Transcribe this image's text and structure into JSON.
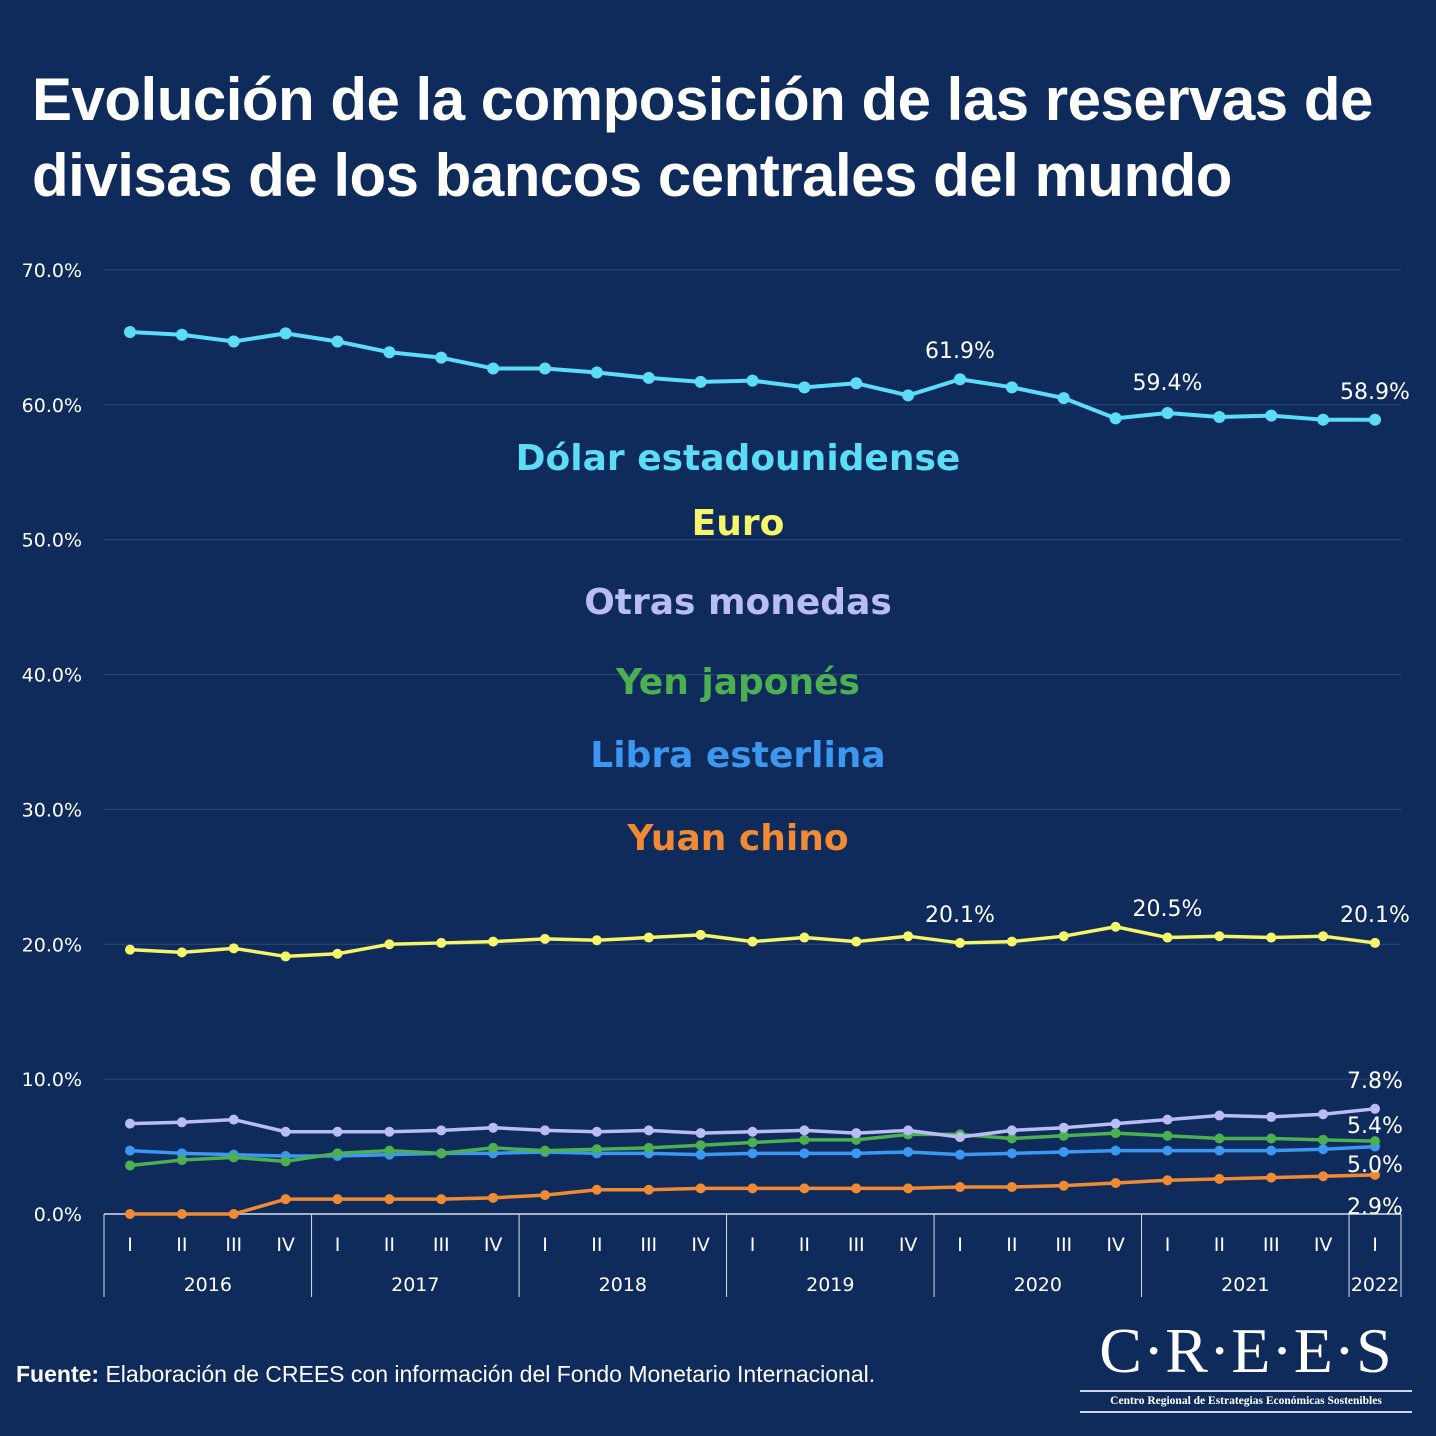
{
  "title": "Evolución de la composición de las reservas de divisas de los bancos centrales del mundo",
  "footer": {
    "label": "Fuente:",
    "text": " Elaboración de CREES con información del Fondo Monetario Internacional."
  },
  "logo": {
    "name": "C·R·E·E·S",
    "subtitle": "Centro Regional de Estrategias Económicas Sostenibles"
  },
  "colors": {
    "background": "#0f2b5b",
    "grid": "#2f4a78",
    "axis": "#d9dee8"
  },
  "chart_data": {
    "type": "line",
    "title": "Evolución de la composición de las reservas de divisas de los bancos centrales del mundo",
    "xlabel": "",
    "ylabel": "",
    "ylim": [
      0,
      70
    ],
    "yticks": [
      "0.0%",
      "10.0%",
      "20.0%",
      "30.0%",
      "40.0%",
      "50.0%",
      "60.0%",
      "70.0%"
    ],
    "grid": true,
    "legend_placement": "center",
    "quarters": [
      "I",
      "II",
      "III",
      "IV",
      "I",
      "II",
      "III",
      "IV",
      "I",
      "II",
      "III",
      "IV",
      "I",
      "II",
      "III",
      "IV",
      "I",
      "II",
      "III",
      "IV",
      "I",
      "II",
      "III",
      "IV",
      "I"
    ],
    "years": [
      {
        "label": "2016",
        "quarters": 4
      },
      {
        "label": "2017",
        "quarters": 4
      },
      {
        "label": "2018",
        "quarters": 4
      },
      {
        "label": "2019",
        "quarters": 4
      },
      {
        "label": "2020",
        "quarters": 4
      },
      {
        "label": "2021",
        "quarters": 4
      },
      {
        "label": "2022",
        "quarters": 1
      }
    ],
    "series": [
      {
        "name": "Dólar estadounidense",
        "color": "#5ddcf7",
        "values": [
          65.4,
          65.2,
          64.7,
          65.3,
          64.7,
          63.9,
          63.5,
          62.7,
          62.7,
          62.4,
          62.0,
          61.7,
          61.8,
          61.3,
          61.6,
          60.7,
          61.9,
          61.3,
          60.5,
          59.0,
          59.4,
          59.1,
          59.2,
          58.9,
          58.9
        ],
        "labels": [
          {
            "index": 16,
            "text": "61.9%"
          },
          {
            "index": 20,
            "text": "59.4%"
          },
          {
            "index": 24,
            "text": "58.9%"
          }
        ]
      },
      {
        "name": "Euro",
        "color": "#f5f56a",
        "values": [
          19.6,
          19.4,
          19.7,
          19.1,
          19.3,
          20.0,
          20.1,
          20.2,
          20.4,
          20.3,
          20.5,
          20.7,
          20.2,
          20.5,
          20.2,
          20.6,
          20.1,
          20.2,
          20.6,
          21.3,
          20.5,
          20.6,
          20.5,
          20.6,
          20.1
        ],
        "labels": [
          {
            "index": 16,
            "text": "20.1%"
          },
          {
            "index": 20,
            "text": "20.5%"
          },
          {
            "index": 24,
            "text": "20.1%"
          }
        ]
      },
      {
        "name": "Otras monedas",
        "color": "#b9bcf5",
        "values": [
          6.7,
          6.8,
          7.0,
          6.1,
          6.1,
          6.1,
          6.2,
          6.4,
          6.2,
          6.1,
          6.2,
          6.0,
          6.1,
          6.2,
          6.0,
          6.2,
          5.7,
          6.2,
          6.4,
          6.7,
          7.0,
          7.3,
          7.2,
          7.4,
          7.8
        ],
        "labels": [
          {
            "index": 24,
            "text": "7.8%"
          }
        ]
      },
      {
        "name": "Yen japonés",
        "color": "#4caf50",
        "values": [
          3.6,
          4.0,
          4.2,
          3.9,
          4.5,
          4.7,
          4.5,
          4.9,
          4.7,
          4.8,
          4.9,
          5.1,
          5.3,
          5.5,
          5.5,
          5.9,
          5.9,
          5.6,
          5.8,
          6.0,
          5.8,
          5.6,
          5.6,
          5.5,
          5.4
        ],
        "labels": [
          {
            "index": 24,
            "text": "5.4%"
          }
        ]
      },
      {
        "name": "Libra esterlina",
        "color": "#3b97f0",
        "values": [
          4.7,
          4.5,
          4.4,
          4.3,
          4.3,
          4.4,
          4.5,
          4.5,
          4.6,
          4.5,
          4.5,
          4.4,
          4.5,
          4.5,
          4.5,
          4.6,
          4.4,
          4.5,
          4.6,
          4.7,
          4.7,
          4.7,
          4.7,
          4.8,
          5.0
        ],
        "labels": [
          {
            "index": 24,
            "text": "5.0%"
          }
        ]
      },
      {
        "name": "Yuan chino",
        "color": "#f08a35",
        "values": [
          0.0,
          0.0,
          0.0,
          1.1,
          1.1,
          1.1,
          1.1,
          1.2,
          1.4,
          1.8,
          1.8,
          1.9,
          1.9,
          1.9,
          1.9,
          1.9,
          2.0,
          2.0,
          2.1,
          2.3,
          2.5,
          2.6,
          2.7,
          2.8,
          2.9
        ],
        "labels": [
          {
            "index": 24,
            "text": "2.9%"
          }
        ]
      }
    ]
  }
}
